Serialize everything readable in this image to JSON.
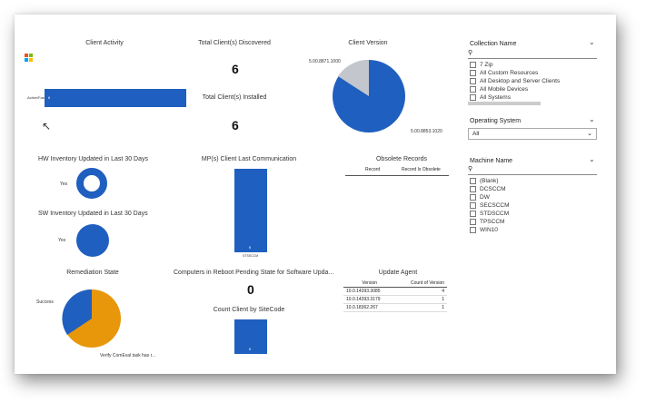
{
  "colors": {
    "blue": "#1f5fbf",
    "gray": "#c3c6cc",
    "orange": "#e8960a"
  },
  "client_activity": {
    "title": "Client Activity",
    "bar_label": "Active/Fast",
    "bar_value": "6"
  },
  "clients_discovered": {
    "title": "Total Client(s) Discovered",
    "value": "6"
  },
  "clients_installed": {
    "title": "Total Client(s) Installed",
    "value": "6"
  },
  "client_version": {
    "title": "Client Version",
    "slices": [
      {
        "label": "5.00.8871.1000",
        "fraction": 0.17
      },
      {
        "label": "5.00.8853.1020",
        "fraction": 0.83
      }
    ]
  },
  "hw_inventory": {
    "title": "HW Inventory Updated in Last 30 Days",
    "label": "Yes"
  },
  "sw_inventory": {
    "title": "SW Inventory Updated in Last 30 Days",
    "label": "Yes"
  },
  "mp_comm": {
    "title": "MP(s) Client Last Communication",
    "bar_value": "6",
    "axis_label": "STSSCCM"
  },
  "obsolete": {
    "title": "Obsolete Records",
    "columns": [
      "Record",
      "Record Is Obsolete"
    ]
  },
  "remediation": {
    "title": "Remediation State",
    "slices": [
      {
        "label": "Success",
        "fraction": 0.3
      },
      {
        "label": "Verify ComEval task has r...",
        "fraction": 0.7
      }
    ]
  },
  "reboot": {
    "title": "Computers in Reboot Pending State for Software Upda...",
    "value": "0"
  },
  "sitecode": {
    "title": "Count Client by SiteCode",
    "bar_value": "6"
  },
  "update_agent": {
    "title": "Update Agent",
    "columns": [
      "Version",
      "Count of Version"
    ],
    "rows": [
      [
        "10.0.14393.3085",
        "4"
      ],
      [
        "10.0.14393.3179",
        "1"
      ],
      [
        "10.0.18362.267",
        "1"
      ]
    ]
  },
  "filters": {
    "collection": {
      "title": "Collection Name",
      "items": [
        "7 Zip",
        "All Custom Resources",
        "All Desktop and Server Clients",
        "All Mobile Devices",
        "All Systems"
      ]
    },
    "os": {
      "title": "Operating System",
      "value": "All"
    },
    "machine": {
      "title": "Machine Name",
      "items": [
        "(Blank)",
        "DCSCCM",
        "DW",
        "SECSCCM",
        "STDSCCM",
        "TPSCCM",
        "WIN10"
      ]
    }
  }
}
